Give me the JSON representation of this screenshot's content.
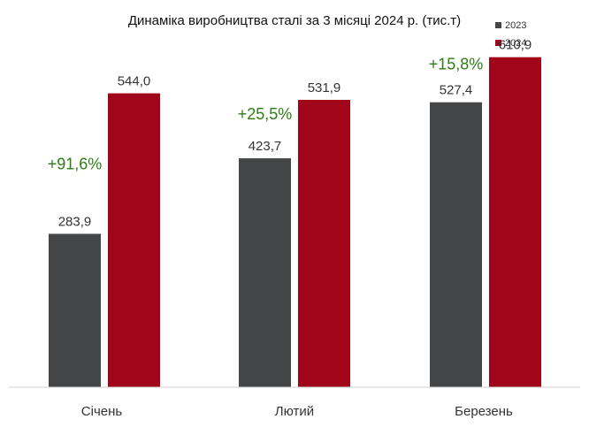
{
  "chart_data": {
    "type": "bar",
    "title": "Динаміка виробництва сталі за 3 місяці 2024 р. (тис.т)",
    "categories": [
      "Січень",
      "Лютий",
      "Березень"
    ],
    "series": [
      {
        "name": "2023",
        "values": [
          283.9,
          423.7,
          527.4
        ],
        "labels": [
          "283,9",
          "423,7",
          "527,4"
        ],
        "color": "#444547"
      },
      {
        "name": "2024",
        "values": [
          544.0,
          531.9,
          610.9
        ],
        "labels": [
          "544,0",
          "531,9",
          "610,9"
        ],
        "color": "#a10519"
      }
    ],
    "changes": [
      "+91,6%",
      "+25,5%",
      "+15,8%"
    ],
    "change_color": "#2e7d14",
    "ylim": [
      0,
      700
    ],
    "grid": false,
    "legend_position": "top-right"
  }
}
